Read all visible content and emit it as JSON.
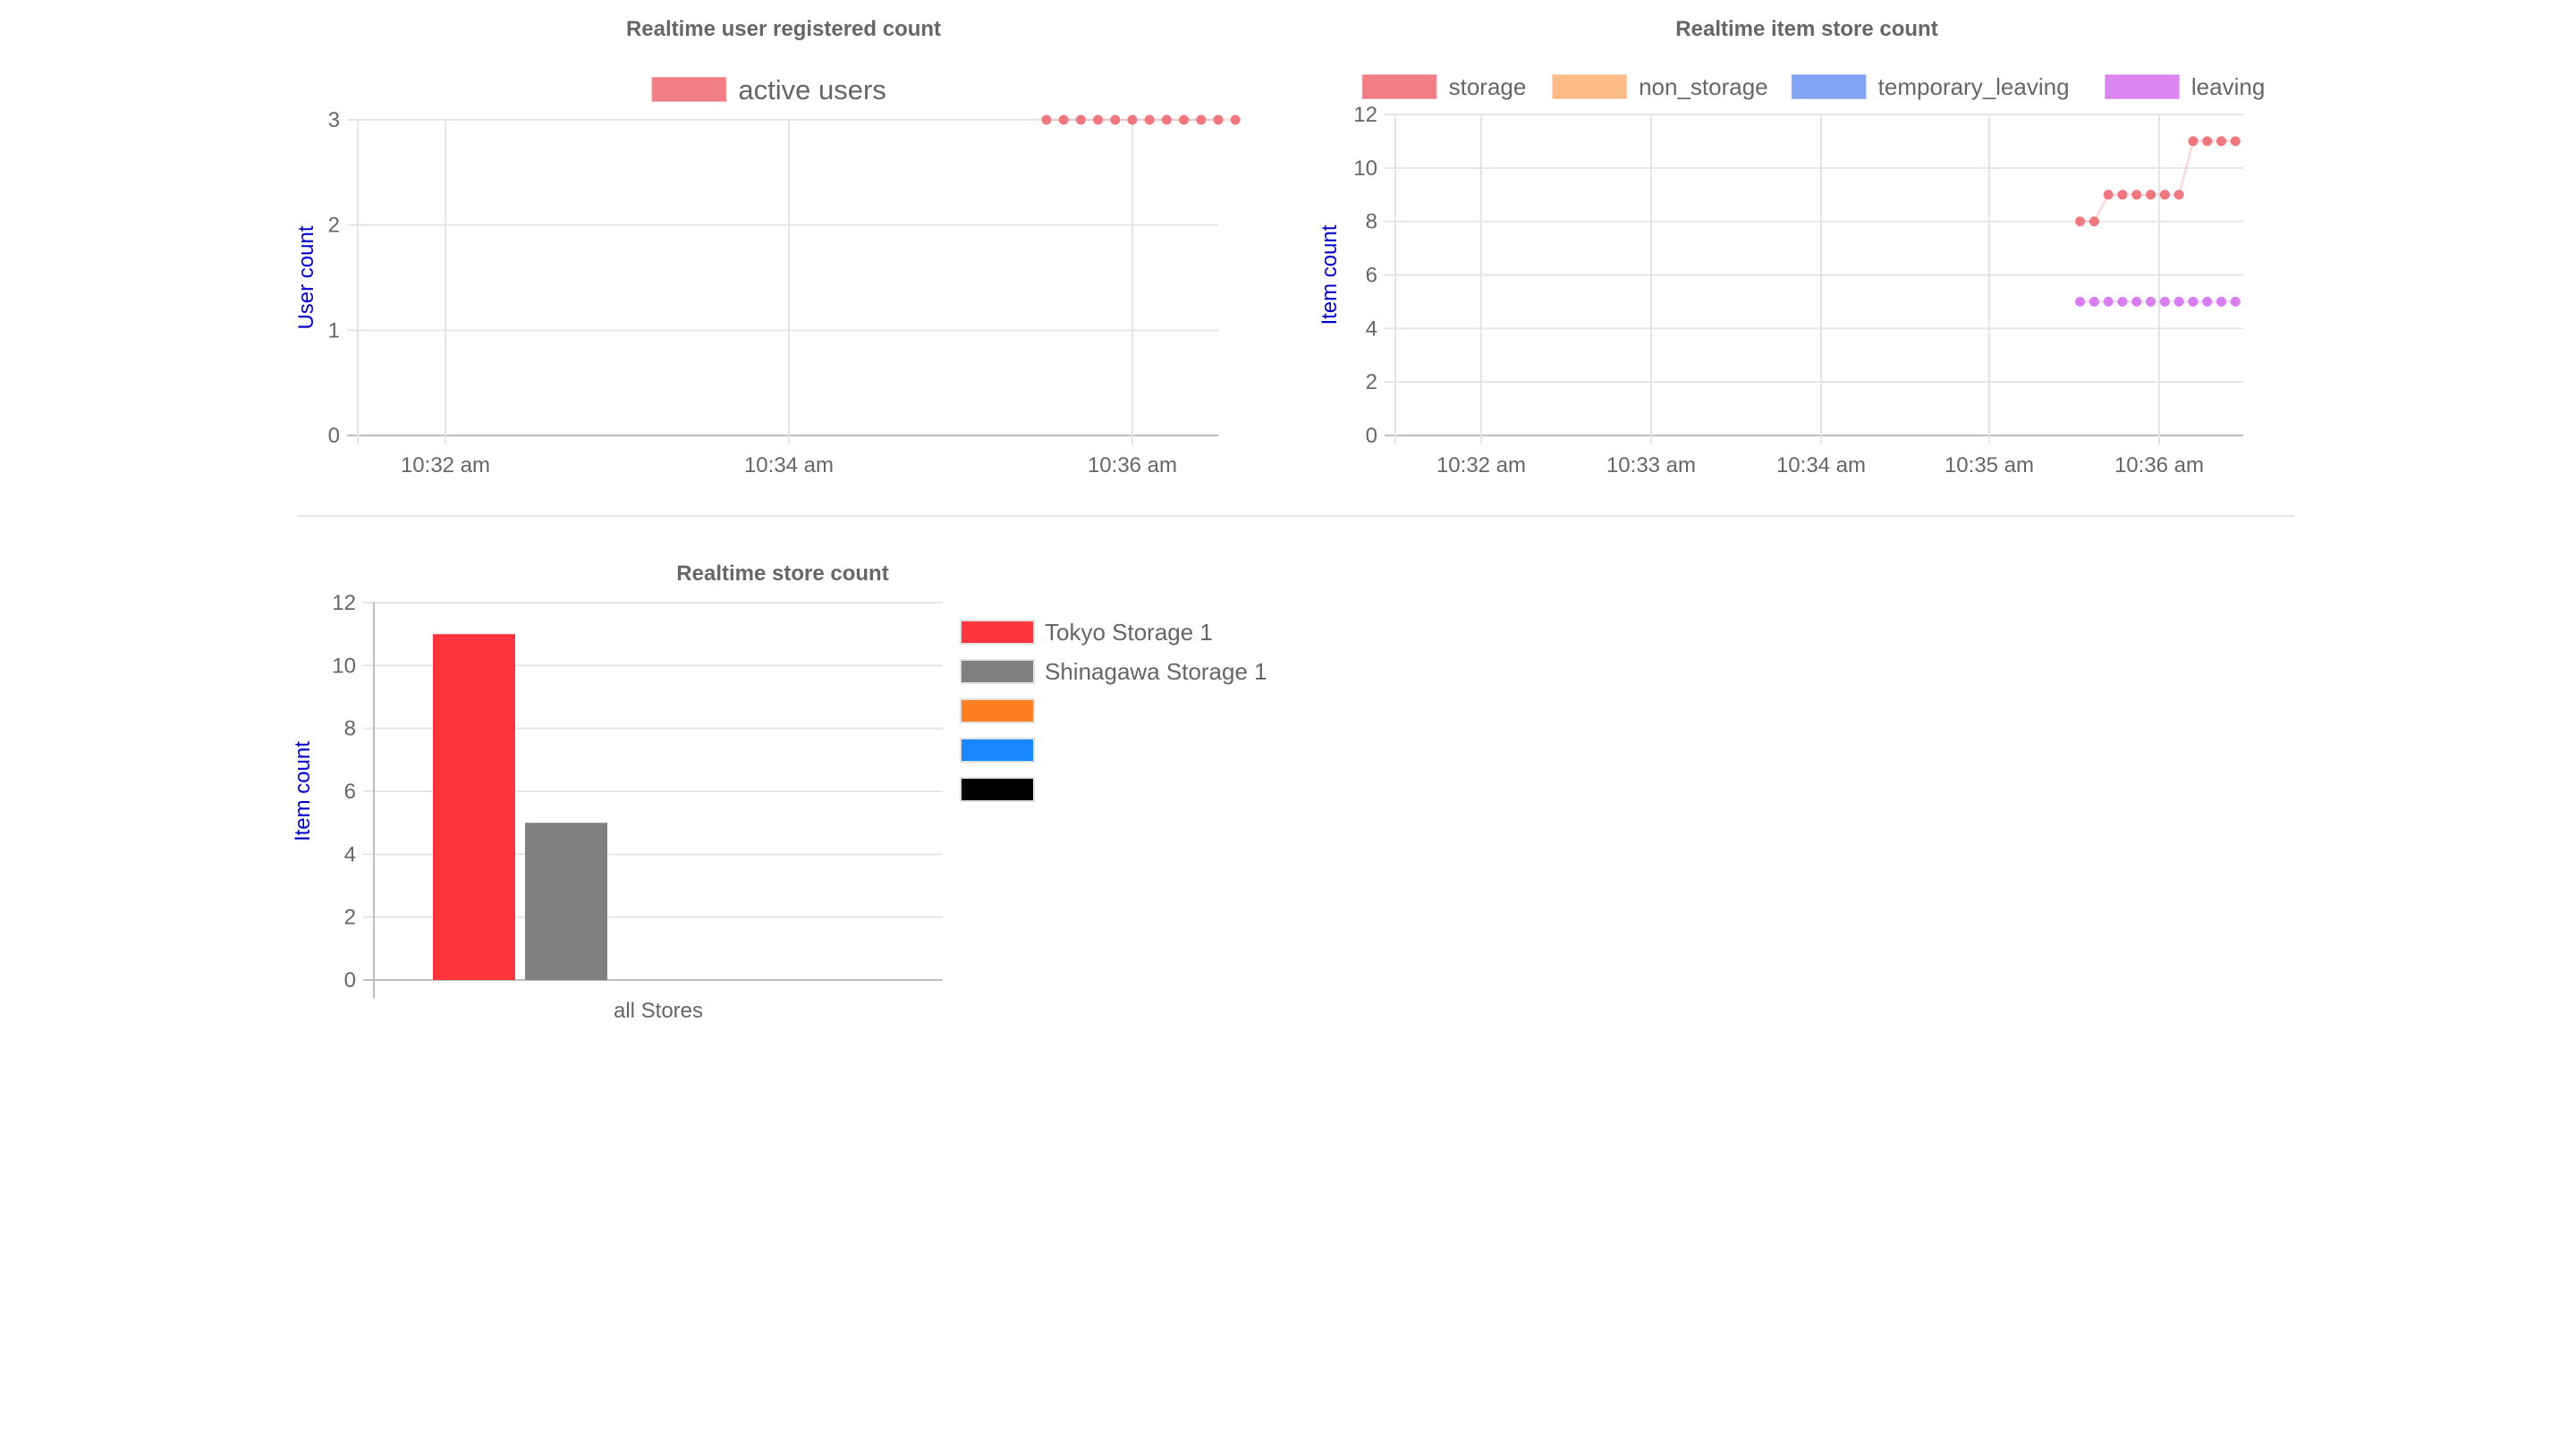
{
  "chart_data": [
    {
      "id": "user-chart",
      "type": "line",
      "title": "Realtime user registered count",
      "ylabel": "User count",
      "xlabel": "",
      "ylim": [
        0,
        3
      ],
      "yticks": [
        "0",
        "1",
        "2",
        "3"
      ],
      "x_ticks": [
        "10:32 am",
        "10:34 am",
        "10:36 am"
      ],
      "series": [
        {
          "name": "active users",
          "color": "#f0777f",
          "x": [
            "10:35:30",
            "10:35:36",
            "10:35:42",
            "10:35:48",
            "10:35:54",
            "10:36:00",
            "10:36:06",
            "10:36:12",
            "10:36:18",
            "10:36:24",
            "10:36:30",
            "10:36:36"
          ],
          "values": [
            3,
            3,
            3,
            3,
            3,
            3,
            3,
            3,
            3,
            3,
            3,
            3
          ]
        }
      ],
      "legend": "top"
    },
    {
      "id": "item-chart",
      "type": "line",
      "title": "Realtime item store count",
      "ylabel": "Item count",
      "xlabel": "",
      "ylim": [
        0,
        12
      ],
      "yticks": [
        "0",
        "2",
        "4",
        "6",
        "8",
        "10",
        "12"
      ],
      "x_ticks": [
        "10:32 am",
        "10:33 am",
        "10:34 am",
        "10:35 am",
        "10:36 am"
      ],
      "series": [
        {
          "name": "storage",
          "color": "#f0777f",
          "x": [
            "10:35:32",
            "10:35:37",
            "10:35:42",
            "10:35:47",
            "10:35:52",
            "10:35:57",
            "10:36:02",
            "10:36:07",
            "10:36:12",
            "10:36:17",
            "10:36:22",
            "10:36:27"
          ],
          "values": [
            8,
            8,
            9,
            9,
            9,
            9,
            9,
            9,
            11,
            11,
            11,
            11
          ]
        },
        {
          "name": "non_storage",
          "color": "#fbb782",
          "x": [],
          "values": []
        },
        {
          "name": "temporary_leaving",
          "color": "#7b9ef0",
          "x": [],
          "values": []
        },
        {
          "name": "leaving",
          "color": "#d97ef0",
          "x": [
            "10:35:32",
            "10:35:37",
            "10:35:42",
            "10:35:47",
            "10:35:52",
            "10:35:57",
            "10:36:02",
            "10:36:07",
            "10:36:12",
            "10:36:17",
            "10:36:22",
            "10:36:27"
          ],
          "values": [
            5,
            5,
            5,
            5,
            5,
            5,
            5,
            5,
            5,
            5,
            5,
            5
          ]
        }
      ],
      "legend": "top"
    },
    {
      "id": "store-chart",
      "type": "bar",
      "title": "Realtime store count",
      "ylabel": "Item count",
      "xlabel": "",
      "ylim": [
        0,
        12
      ],
      "yticks": [
        "0",
        "2",
        "4",
        "6",
        "8",
        "10",
        "12"
      ],
      "categories": [
        "all Stores"
      ],
      "series": [
        {
          "name": "Tokyo Storage 1",
          "color": "#fe353d",
          "values": [
            11
          ]
        },
        {
          "name": "Shinagawa Storage 1",
          "color": "#808080",
          "values": [
            5
          ]
        },
        {
          "name": "",
          "color": "#fd7f22",
          "values": [
            0
          ]
        },
        {
          "name": "",
          "color": "#1985fe",
          "values": [
            0
          ]
        },
        {
          "name": "",
          "color": "#000000",
          "values": [
            0
          ]
        }
      ],
      "legend": "right"
    }
  ]
}
